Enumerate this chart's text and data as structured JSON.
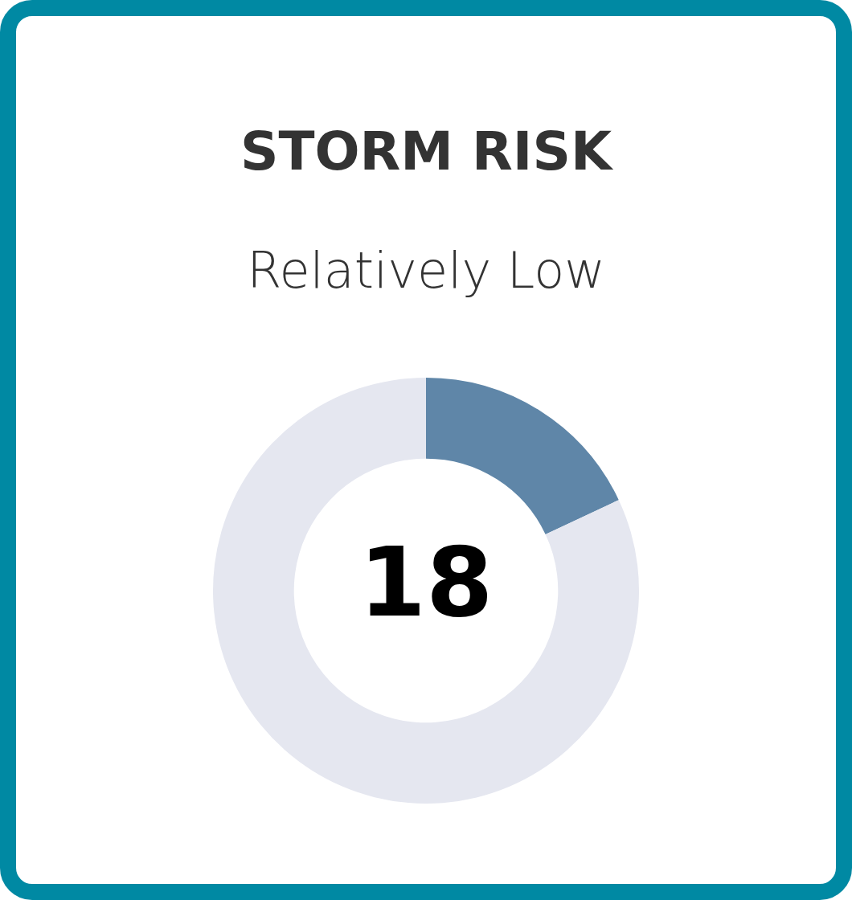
{
  "chart_data": {
    "type": "donut",
    "title": "STORM RISK",
    "subtitle": "Relatively Low",
    "categories": [
      null,
      null
    ],
    "values": [
      18,
      82
    ],
    "colors": [
      "#5f86a8",
      "#e5e7f0"
    ],
    "annotations": [
      "18"
    ],
    "legend": false
  }
}
